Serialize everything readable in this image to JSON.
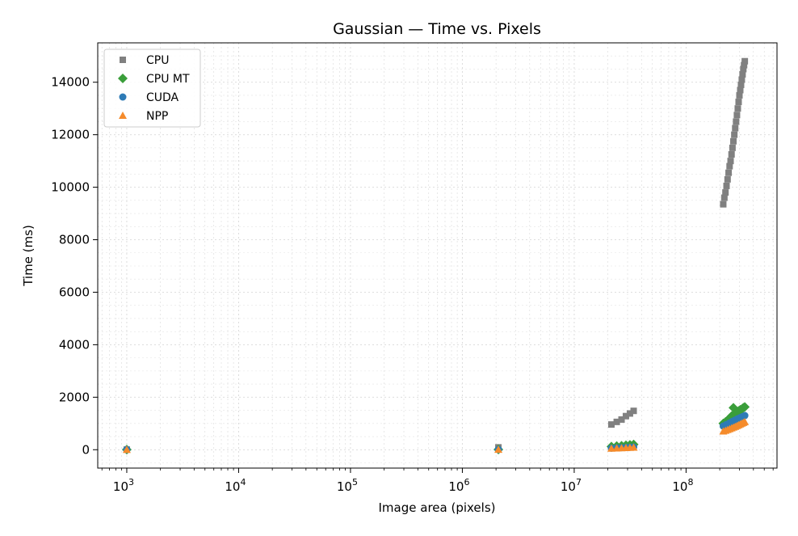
{
  "chart_data": {
    "type": "scatter",
    "title": "Gaussian — Time vs. Pixels",
    "xlabel": "Image area (pixels)",
    "ylabel": "Time (ms)",
    "xscale": "log",
    "xlim": [
      550,
      650000000
    ],
    "ylim": [
      -700,
      15500
    ],
    "xticks": [
      {
        "value": 1000,
        "base": "10",
        "exp": "3"
      },
      {
        "value": 10000,
        "base": "10",
        "exp": "4"
      },
      {
        "value": 100000,
        "base": "10",
        "exp": "5"
      },
      {
        "value": 1000000,
        "base": "10",
        "exp": "6"
      },
      {
        "value": 10000000,
        "base": "10",
        "exp": "7"
      },
      {
        "value": 100000000,
        "base": "10",
        "exp": "8"
      }
    ],
    "yticks": [
      {
        "value": 0,
        "label": "0"
      },
      {
        "value": 2000,
        "label": "2000"
      },
      {
        "value": 4000,
        "label": "4000"
      },
      {
        "value": 6000,
        "label": "6000"
      },
      {
        "value": 8000,
        "label": "8000"
      },
      {
        "value": 10000,
        "label": "10000"
      },
      {
        "value": 12000,
        "label": "12000"
      },
      {
        "value": 14000,
        "label": "14000"
      }
    ],
    "grid": true,
    "legend_position": "top-left",
    "series": [
      {
        "name": "CPU",
        "marker": "square",
        "color": "#808080",
        "points": [
          [
            1000,
            5
          ],
          [
            2100000,
            90
          ],
          [
            21500000,
            960
          ],
          [
            24000000,
            1060
          ],
          [
            26500000,
            1150
          ],
          [
            29000000,
            1280
          ],
          [
            31500000,
            1380
          ],
          [
            34000000,
            1480
          ],
          [
            215000000,
            9350
          ],
          [
            220000000,
            9600
          ],
          [
            225000000,
            9800
          ],
          [
            230000000,
            10050
          ],
          [
            235000000,
            10300
          ],
          [
            240000000,
            10550
          ],
          [
            245000000,
            10800
          ],
          [
            250000000,
            11000
          ],
          [
            255000000,
            11250
          ],
          [
            260000000,
            11500
          ],
          [
            265000000,
            11750
          ],
          [
            270000000,
            12000
          ],
          [
            275000000,
            12250
          ],
          [
            280000000,
            12500
          ],
          [
            285000000,
            12750
          ],
          [
            290000000,
            13000
          ],
          [
            295000000,
            13250
          ],
          [
            300000000,
            13500
          ],
          [
            305000000,
            13700
          ],
          [
            310000000,
            13900
          ],
          [
            315000000,
            14100
          ],
          [
            320000000,
            14300
          ],
          [
            325000000,
            14500
          ],
          [
            330000000,
            14650
          ],
          [
            335000000,
            14800
          ]
        ]
      },
      {
        "name": "CPU MT",
        "marker": "diamond",
        "color": "#3a9e3a",
        "points": [
          [
            1000,
            5
          ],
          [
            2100000,
            8
          ],
          [
            21500000,
            120
          ],
          [
            24000000,
            140
          ],
          [
            26500000,
            150
          ],
          [
            29000000,
            170
          ],
          [
            31500000,
            185
          ],
          [
            34000000,
            200
          ],
          [
            215000000,
            1000
          ],
          [
            225000000,
            1060
          ],
          [
            235000000,
            1120
          ],
          [
            245000000,
            1200
          ],
          [
            255000000,
            1280
          ],
          [
            265000000,
            1600
          ],
          [
            275000000,
            1400
          ],
          [
            285000000,
            1450
          ],
          [
            295000000,
            1480
          ],
          [
            305000000,
            1520
          ],
          [
            315000000,
            1550
          ],
          [
            325000000,
            1600
          ],
          [
            335000000,
            1630
          ]
        ]
      },
      {
        "name": "CUDA",
        "marker": "circle",
        "color": "#2e7bb6",
        "points": [
          [
            1000,
            3
          ],
          [
            2100000,
            5
          ],
          [
            21500000,
            60
          ],
          [
            24000000,
            70
          ],
          [
            26500000,
            78
          ],
          [
            29000000,
            85
          ],
          [
            31500000,
            92
          ],
          [
            34000000,
            100
          ],
          [
            215000000,
            900
          ],
          [
            230000000,
            960
          ],
          [
            245000000,
            1020
          ],
          [
            260000000,
            1080
          ],
          [
            275000000,
            1130
          ],
          [
            290000000,
            1180
          ],
          [
            305000000,
            1220
          ],
          [
            320000000,
            1260
          ],
          [
            335000000,
            1300
          ]
        ]
      },
      {
        "name": "NPP",
        "marker": "triangle",
        "color": "#f58b2b",
        "points": [
          [
            1000,
            2
          ],
          [
            2100000,
            4
          ],
          [
            21500000,
            45
          ],
          [
            24000000,
            55
          ],
          [
            26500000,
            62
          ],
          [
            29000000,
            70
          ],
          [
            31500000,
            78
          ],
          [
            34000000,
            86
          ],
          [
            215000000,
            700
          ],
          [
            225000000,
            730
          ],
          [
            235000000,
            760
          ],
          [
            245000000,
            790
          ],
          [
            255000000,
            820
          ],
          [
            265000000,
            850
          ],
          [
            275000000,
            880
          ],
          [
            285000000,
            910
          ],
          [
            295000000,
            940
          ],
          [
            305000000,
            970
          ],
          [
            315000000,
            1000
          ],
          [
            325000000,
            1030
          ],
          [
            335000000,
            1060
          ]
        ]
      }
    ]
  }
}
